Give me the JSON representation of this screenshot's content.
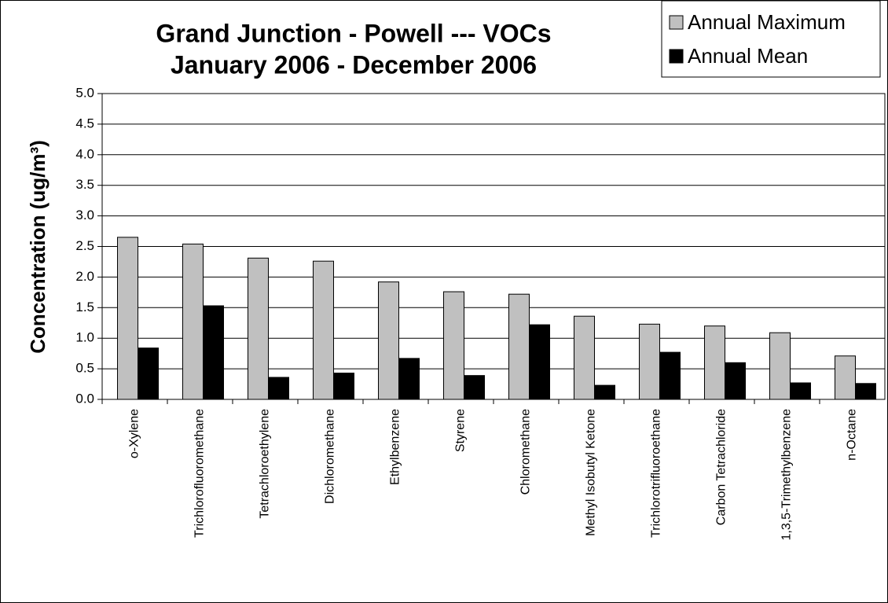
{
  "chart_data": {
    "type": "bar",
    "title": "Grand Junction - Powell --- VOCs",
    "subtitle": "January 2006 - December 2006",
    "y_label": "Concentration (ug/m³)",
    "categories": [
      "o-Xylene",
      "Trichlorofluoromethane",
      "Tetrachloroethylene",
      "Dichloromethane",
      "Ethylbenzene",
      "Styrene",
      "Chloromethane",
      "Methyl Isobutyl Ketone",
      "Trichlorotrifluoroethane",
      "Carbon Tetrachloride",
      "1,3,5-Trimethylbenzene",
      "n-Octane"
    ],
    "series": [
      {
        "name": "Annual Maximum",
        "color": "#c0c0c0",
        "values": [
          2.65,
          2.54,
          2.31,
          2.26,
          1.92,
          1.76,
          1.72,
          1.36,
          1.23,
          1.2,
          1.09,
          0.71
        ]
      },
      {
        "name": "Annual Mean",
        "color": "#000000",
        "values": [
          0.84,
          1.53,
          0.36,
          0.43,
          0.67,
          0.39,
          1.22,
          0.23,
          0.77,
          0.6,
          0.27,
          0.26
        ]
      }
    ],
    "ylim": [
      0,
      5
    ],
    "yticks": [
      {
        "value": 0,
        "label": "0.0"
      },
      {
        "value": 0.5,
        "label": "0.5"
      },
      {
        "value": 1,
        "label": "1.0"
      },
      {
        "value": 1.5,
        "label": "1.5"
      },
      {
        "value": 2,
        "label": "2.0"
      },
      {
        "value": 2.5,
        "label": "2.5"
      },
      {
        "value": 3,
        "label": "3.0"
      },
      {
        "value": 3.5,
        "label": "3.5"
      },
      {
        "value": 4,
        "label": "4.0"
      },
      {
        "value": 4.5,
        "label": "4.5"
      },
      {
        "value": 5,
        "label": "5.0"
      }
    ],
    "grid": true,
    "legend": "top-right"
  }
}
